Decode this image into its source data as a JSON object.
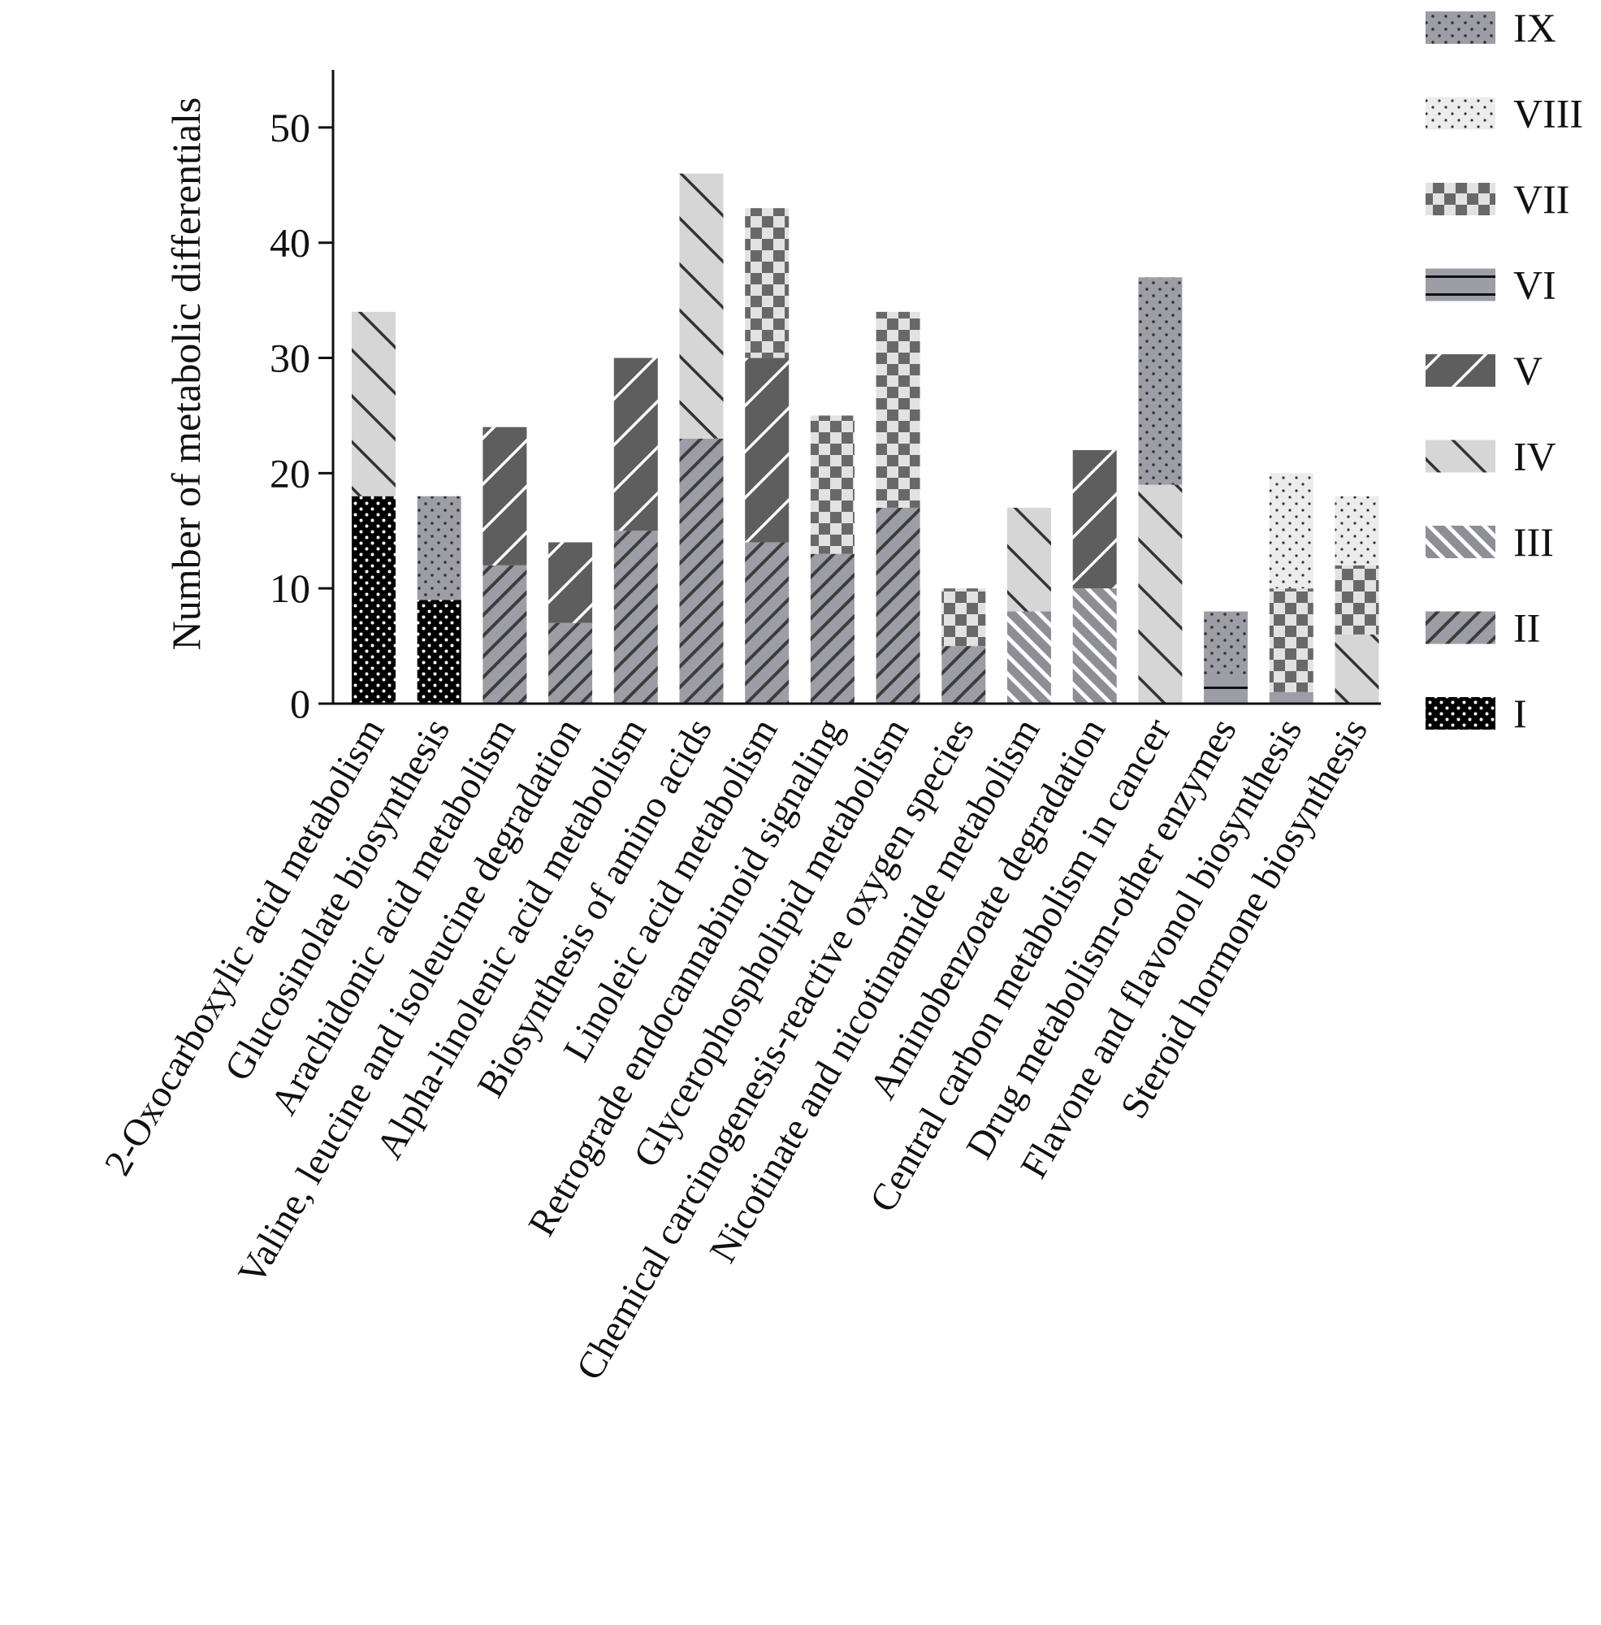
{
  "chart_data": {
    "type": "bar",
    "stacked": true,
    "ylabel": "Number of metabolic differentials",
    "xlabel": "",
    "ylim": [
      0,
      55
    ],
    "yticks": [
      0,
      10,
      20,
      30,
      40,
      50
    ],
    "grid": false,
    "legend_position": "right",
    "categories": [
      "2-Oxocarboxylic acid metabolism",
      "Glucosinolate biosynthesis",
      "Arachidonic acid metabolism",
      "Valine, leucine and isoleucine degradation",
      "Alpha-linolenic acid metabolism",
      "Biosynthesis of amino acids",
      "Linoleic acid metabolism",
      "Retrograde endocannabinoid signaling",
      "Glycerophospholipid metabolism",
      "Chemical carcinogenesis-reactive oxygen species",
      "Nicotinate and nicotinamide metabolism",
      "Aminobenzoate degradation",
      "Central carbon metabolism in cancer",
      "Drug metabolism-other enzymes",
      "Flavone and flavonol biosynthesis",
      "Steroid hormone biosynthesis"
    ],
    "series": [
      {
        "name": "I",
        "pattern": "dots-black",
        "values": [
          18,
          9,
          0,
          0,
          0,
          0,
          0,
          0,
          0,
          0,
          0,
          0,
          0,
          0,
          0,
          0
        ]
      },
      {
        "name": "II",
        "pattern": "hatch-gray",
        "values": [
          0,
          0,
          12,
          7,
          15,
          23,
          14,
          13,
          17,
          5,
          0,
          0,
          0,
          0,
          0,
          0
        ]
      },
      {
        "name": "III",
        "pattern": "diag-white",
        "values": [
          0,
          0,
          0,
          0,
          0,
          0,
          0,
          0,
          0,
          0,
          8,
          10,
          0,
          0,
          0,
          0
        ]
      },
      {
        "name": "IV",
        "pattern": "backslash-light",
        "values": [
          16,
          0,
          0,
          0,
          0,
          23,
          0,
          0,
          0,
          0,
          9,
          0,
          19,
          0,
          0,
          6
        ]
      },
      {
        "name": "V",
        "pattern": "slash-dark",
        "values": [
          0,
          0,
          12,
          7,
          15,
          0,
          16,
          0,
          0,
          0,
          0,
          12,
          0,
          0,
          0,
          0
        ]
      },
      {
        "name": "VI",
        "pattern": "hline-gray",
        "values": [
          0,
          0,
          0,
          0,
          0,
          0,
          0,
          0,
          0,
          0,
          0,
          0,
          0,
          2.5,
          1,
          0
        ]
      },
      {
        "name": "VII",
        "pattern": "checker",
        "values": [
          0,
          0,
          0,
          0,
          0,
          0,
          13,
          12,
          17,
          5,
          0,
          0,
          0,
          0,
          9,
          6
        ]
      },
      {
        "name": "VIII",
        "pattern": "dots-light",
        "values": [
          0,
          0,
          0,
          0,
          0,
          0,
          0,
          0,
          0,
          0,
          0,
          0,
          0,
          0,
          10,
          6
        ]
      },
      {
        "name": "IX",
        "pattern": "dots-gray",
        "values": [
          0,
          9,
          0,
          0,
          0,
          0,
          0,
          0,
          0,
          0,
          0,
          0,
          18,
          5.5,
          0,
          0
        ]
      }
    ]
  }
}
